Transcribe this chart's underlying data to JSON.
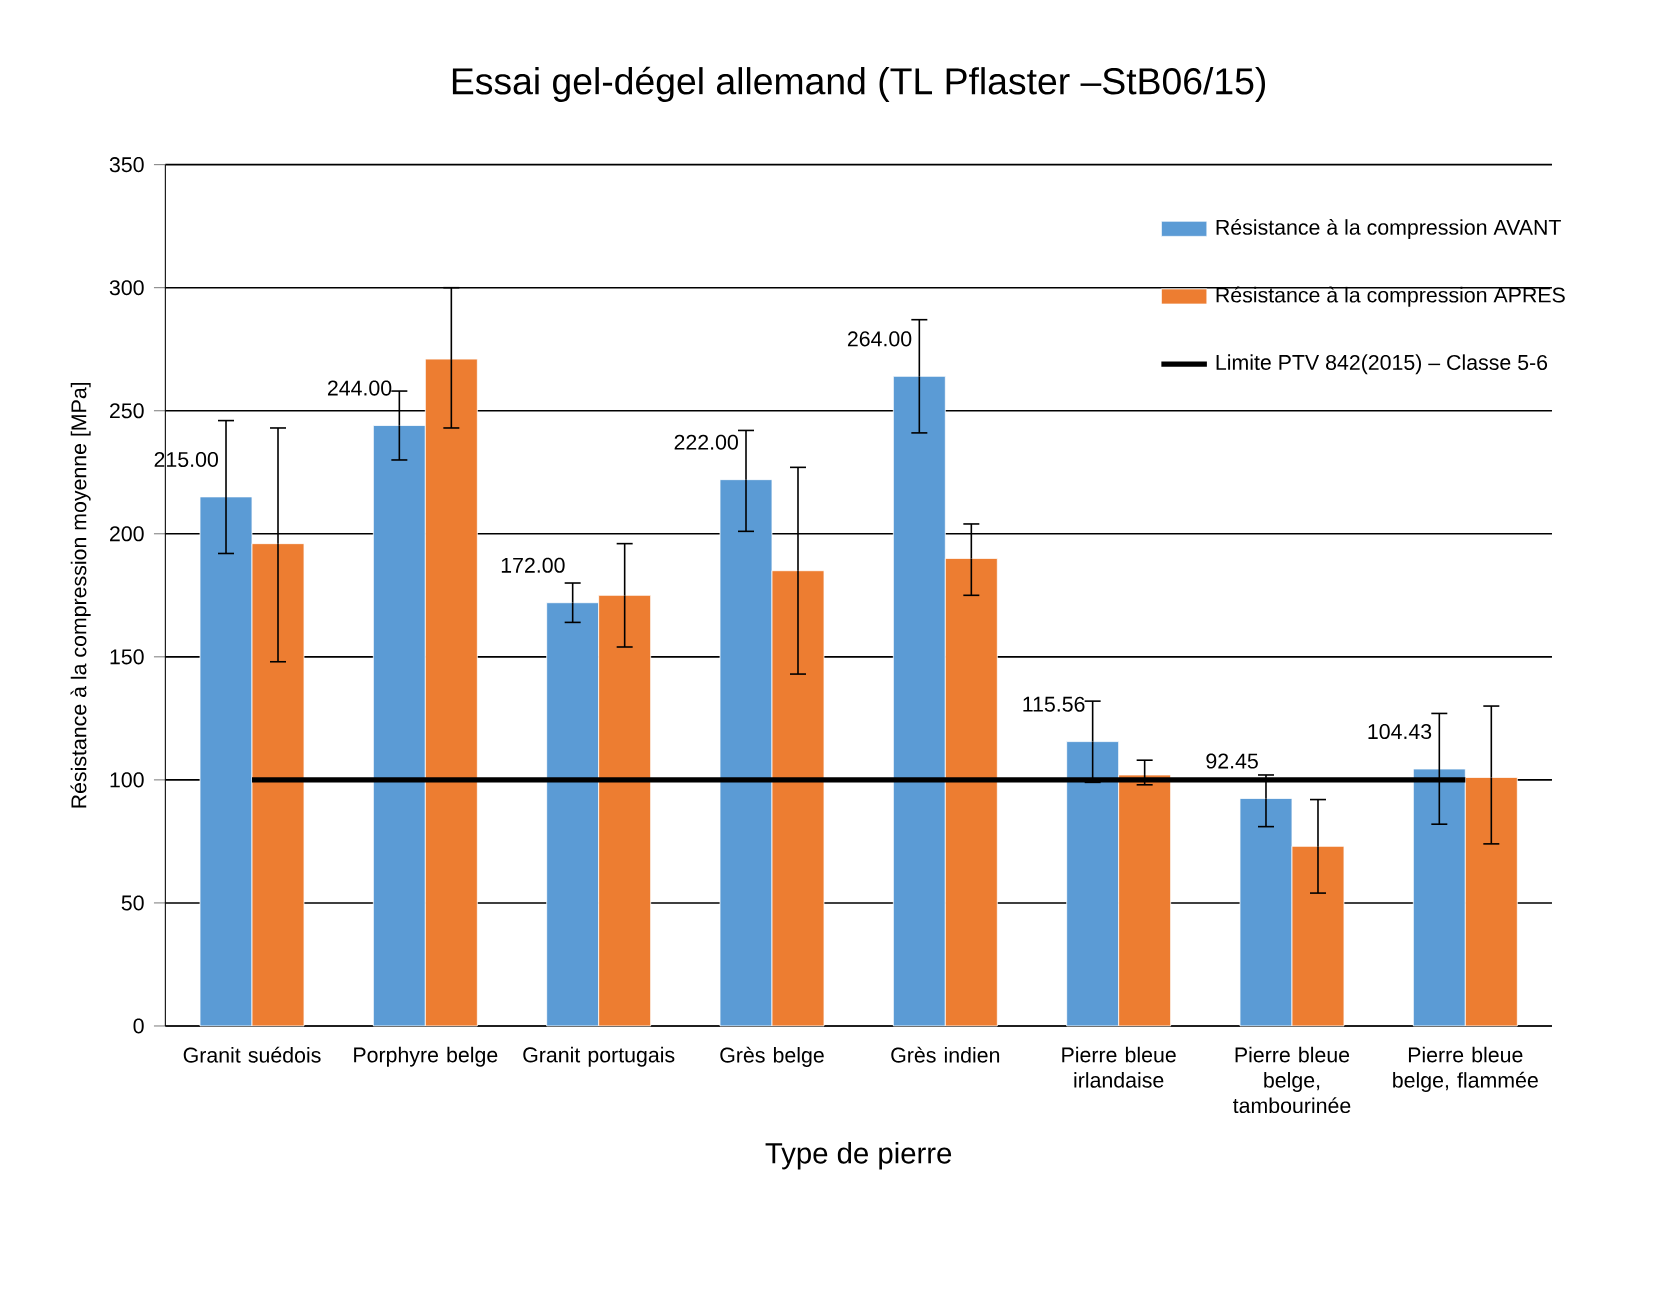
{
  "chart_data": {
    "type": "bar",
    "title": "Essai gel-dégel allemand (TL Pflaster –StB06/15)",
    "xlabel": "Type de pierre",
    "ylabel": "Résistance à la compression moyenne [MPa]",
    "categories": [
      "Granit suédois",
      "Porphyre belge",
      "Granit portugais",
      "Grès belge",
      "Grès indien",
      "Pierre bleue irlandaise",
      "Pierre bleue belge, tambourinée",
      "Pierre bleue belge, flammée"
    ],
    "series": [
      {
        "name": "Résistance à la compression AVANT",
        "color": "#5b9bd5",
        "values": [
          215.0,
          244.0,
          172.0,
          222.0,
          264.0,
          115.56,
          92.45,
          104.43
        ],
        "value_labels": [
          "215.00",
          "244.00",
          "172.00",
          "222.00",
          "264.00",
          "115.56",
          "92.45",
          "104.43"
        ],
        "errors": [
          [
            192,
            246
          ],
          [
            230,
            258
          ],
          [
            164,
            180
          ],
          [
            201,
            242
          ],
          [
            241,
            287
          ],
          [
            99,
            132
          ],
          [
            81,
            102
          ],
          [
            82,
            127
          ]
        ]
      },
      {
        "name": "Résistance à la compression APRES",
        "color": "#ed7d31",
        "values": [
          196,
          271,
          175,
          185,
          190,
          102,
          73,
          101
        ],
        "errors": [
          [
            148,
            243
          ],
          [
            243,
            300
          ],
          [
            154,
            196
          ],
          [
            143,
            227
          ],
          [
            175,
            204
          ],
          [
            98,
            108
          ],
          [
            54,
            92
          ],
          [
            74,
            130
          ]
        ]
      }
    ],
    "ref_lines": [
      {
        "axis": "y",
        "value": 100,
        "label": "Limite PTV 842(2015) – Classe 5-6",
        "color": "#000000"
      }
    ],
    "ylim": [
      0,
      350
    ],
    "yticks": [
      0,
      50,
      100,
      150,
      200,
      250,
      300,
      350
    ],
    "grid": "y",
    "legend": "top right"
  }
}
